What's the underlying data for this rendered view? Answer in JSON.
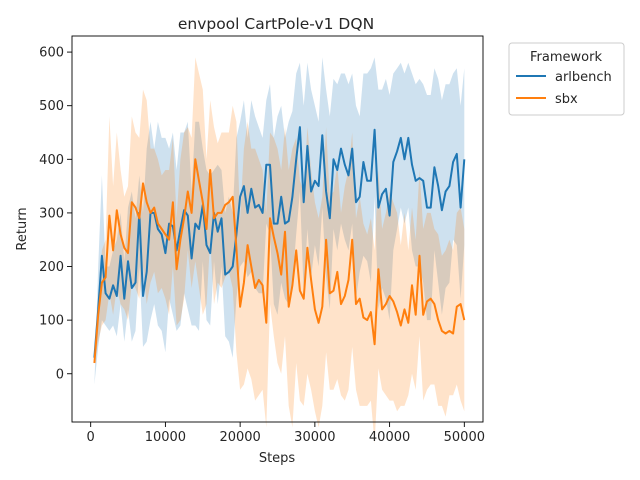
{
  "chart_data": {
    "type": "line",
    "title": "envpool CartPole-v1 DQN",
    "xlabel": "Steps",
    "ylabel": "Return",
    "xlim": [
      -2500,
      52500
    ],
    "ylim": [
      -90,
      630
    ],
    "x_ticks": [
      0,
      10000,
      20000,
      30000,
      40000,
      50000
    ],
    "y_ticks": [
      0,
      100,
      200,
      300,
      400,
      500,
      600
    ],
    "grid": false,
    "legend": {
      "title": "Framework",
      "placement": "outside-top-right"
    },
    "x": [
      500,
      1000,
      1500,
      2000,
      2500,
      3000,
      3500,
      4000,
      4500,
      5000,
      5500,
      6000,
      6500,
      7000,
      7500,
      8000,
      8500,
      9000,
      9500,
      10000,
      10500,
      11000,
      11500,
      12000,
      12500,
      13000,
      13500,
      14000,
      14500,
      15000,
      15500,
      16000,
      16500,
      17000,
      17500,
      18000,
      18500,
      19000,
      19500,
      20000,
      20500,
      21000,
      21500,
      22000,
      22500,
      23000,
      23500,
      24000,
      24500,
      25000,
      25500,
      26000,
      26500,
      27000,
      27500,
      28000,
      28500,
      29000,
      29500,
      30000,
      30500,
      31000,
      31500,
      32000,
      32500,
      33000,
      33500,
      34000,
      34500,
      35000,
      35500,
      36000,
      36500,
      37000,
      37500,
      38000,
      38500,
      39000,
      39500,
      40000,
      40500,
      41000,
      41500,
      42000,
      42500,
      43000,
      43500,
      44000,
      44500,
      45000,
      45500,
      46000,
      46500,
      47000,
      47500,
      48000,
      48500,
      49000,
      49500,
      50000
    ],
    "series": [
      {
        "name": "arlbench",
        "color": "#1f77b4",
        "values": [
          30,
          120,
          220,
          150,
          140,
          165,
          145,
          220,
          140,
          210,
          160,
          170,
          300,
          145,
          190,
          300,
          300,
          270,
          260,
          225,
          280,
          275,
          230,
          270,
          305,
          295,
          215,
          280,
          270,
          315,
          240,
          225,
          300,
          265,
          290,
          185,
          190,
          200,
          260,
          330,
          350,
          300,
          345,
          310,
          315,
          300,
          390,
          390,
          280,
          280,
          330,
          280,
          285,
          330,
          400,
          460,
          320,
          425,
          340,
          360,
          350,
          445,
          340,
          290,
          400,
          380,
          420,
          390,
          370,
          420,
          320,
          330,
          395,
          360,
          360,
          455,
          310,
          335,
          345,
          295,
          395,
          415,
          440,
          400,
          440,
          390,
          360,
          365,
          360,
          310,
          310,
          385,
          350,
          305,
          340,
          350,
          395,
          410,
          310,
          400
        ],
        "band_upper": [
          -20,
          200,
          370,
          200,
          200,
          230,
          250,
          300,
          210,
          310,
          340,
          290,
          370,
          300,
          420,
          470,
          420,
          470,
          440,
          440,
          420,
          450,
          380,
          450,
          450,
          470,
          340,
          470,
          470,
          420,
          380,
          370,
          380,
          390,
          380,
          300,
          330,
          300,
          440,
          470,
          510,
          440,
          510,
          480,
          460,
          440,
          510,
          540,
          440,
          480,
          500,
          440,
          470,
          490,
          560,
          580,
          500,
          580,
          530,
          500,
          470,
          590,
          530,
          480,
          550,
          540,
          560,
          560,
          540,
          560,
          500,
          480,
          560,
          560,
          570,
          590,
          530,
          530,
          550,
          520,
          560,
          570,
          580,
          560,
          580,
          560,
          540,
          550,
          540,
          520,
          520,
          570,
          550,
          510,
          540,
          540,
          560,
          570,
          500,
          570
        ],
        "band_lower": [
          -20,
          50,
          100,
          90,
          80,
          90,
          70,
          130,
          60,
          120,
          60,
          80,
          200,
          50,
          60,
          100,
          130,
          90,
          80,
          40,
          140,
          110,
          80,
          90,
          150,
          120,
          90,
          90,
          80,
          210,
          100,
          90,
          210,
          130,
          200,
          70,
          60,
          30,
          140,
          200,
          210,
          180,
          190,
          160,
          150,
          150,
          280,
          260,
          130,
          110,
          170,
          140,
          130,
          170,
          260,
          340,
          150,
          270,
          180,
          240,
          200,
          310,
          180,
          120,
          270,
          230,
          280,
          250,
          230,
          280,
          140,
          190,
          220,
          210,
          170,
          330,
          120,
          160,
          140,
          100,
          230,
          270,
          310,
          280,
          310,
          230,
          200,
          200,
          170,
          100,
          100,
          230,
          170,
          110,
          160,
          170,
          250,
          240,
          140,
          240
        ]
      },
      {
        "name": "sbx",
        "color": "#ff7f0e",
        "values": [
          20,
          110,
          170,
          180,
          295,
          230,
          305,
          260,
          235,
          225,
          320,
          310,
          290,
          355,
          320,
          300,
          310,
          280,
          270,
          260,
          250,
          320,
          195,
          250,
          290,
          340,
          300,
          400,
          360,
          320,
          270,
          380,
          290,
          300,
          300,
          315,
          320,
          330,
          235,
          125,
          170,
          240,
          200,
          160,
          175,
          165,
          95,
          290,
          255,
          225,
          185,
          265,
          125,
          165,
          230,
          155,
          140,
          235,
          175,
          120,
          95,
          125,
          250,
          150,
          155,
          190,
          130,
          145,
          175,
          250,
          130,
          140,
          105,
          100,
          115,
          55,
          195,
          120,
          130,
          145,
          135,
          115,
          90,
          120,
          95,
          165,
          110,
          220,
          110,
          135,
          140,
          130,
          100,
          80,
          75,
          80,
          75,
          125,
          130,
          100
        ],
        "band_upper": [
          20,
          140,
          230,
          250,
          480,
          350,
          450,
          380,
          330,
          350,
          480,
          450,
          440,
          530,
          510,
          420,
          420,
          400,
          370,
          380,
          380,
          440,
          290,
          400,
          450,
          460,
          440,
          590,
          560,
          530,
          400,
          510,
          460,
          430,
          450,
          450,
          450,
          500,
          470,
          290,
          420,
          470,
          420,
          420,
          400,
          380,
          300,
          450,
          440,
          420,
          380,
          460,
          380,
          420,
          440,
          360,
          340,
          460,
          380,
          320,
          290,
          330,
          460,
          330,
          340,
          390,
          300,
          350,
          380,
          450,
          290,
          330,
          280,
          260,
          290,
          230,
          380,
          270,
          300,
          340,
          320,
          300,
          240,
          300,
          230,
          310,
          250,
          380,
          270,
          300,
          300,
          270,
          260,
          220,
          230,
          250,
          230,
          300,
          310,
          270
        ],
        "band_lower": [
          20,
          60,
          90,
          100,
          150,
          110,
          160,
          130,
          120,
          100,
          170,
          160,
          140,
          200,
          130,
          170,
          190,
          150,
          160,
          140,
          110,
          200,
          90,
          100,
          140,
          230,
          160,
          210,
          160,
          110,
          130,
          250,
          130,
          170,
          160,
          180,
          190,
          160,
          40,
          -30,
          -20,
          10,
          -10,
          -50,
          -40,
          -30,
          -100,
          130,
          70,
          20,
          0,
          70,
          -60,
          -100,
          20,
          -50,
          -60,
          0,
          -30,
          -70,
          -100,
          -60,
          40,
          -30,
          -30,
          -10,
          -40,
          -50,
          -30,
          50,
          -30,
          -60,
          -60,
          -60,
          -50,
          -130,
          10,
          -30,
          -40,
          -50,
          -50,
          -70,
          -60,
          -60,
          -40,
          0,
          -30,
          70,
          -50,
          -30,
          -20,
          -20,
          -60,
          -60,
          -80,
          -40,
          -40,
          -20,
          -50,
          -70
        ]
      }
    ]
  }
}
